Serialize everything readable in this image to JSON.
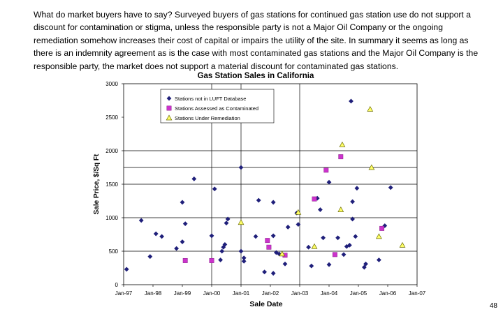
{
  "slide": {
    "paragraph": "What do market buyers have to say?  Surveyed buyers of gas stations for continued gas station use do not support a discount for contamination or stigma, unless the responsible party is not a Major Oil Company or the ongoing remediation somehow increases their cost of capital or impairs the utility of the site.  In summary it seems as long as there is an indemnity agreement as is the case with most contaminated gas stations and the Major Oil Company is the responsible party, the market does not support a material discount for contaminated gas stations.",
    "page_number": "48"
  },
  "chart_data": {
    "type": "scatter",
    "title": "Gas Station Sales in California",
    "xlabel": "Sale Date",
    "ylabel": "Sale Price, $/Sq Ft",
    "x_ticks": [
      "Jan-97",
      "Jan-98",
      "Jan-99",
      "Jan-00",
      "Jan-01",
      "Jan-02",
      "Jan-03",
      "Jan-04",
      "Jan-05",
      "Jan-06",
      "Jan-07"
    ],
    "xlim": [
      1997.0,
      2007.0
    ],
    "ylim": [
      0,
      3000
    ],
    "y_ticks": [
      0,
      500,
      1000,
      1500,
      2000,
      2500,
      3000
    ],
    "y_gridlines": [
      500,
      1000,
      1500,
      1750,
      2000
    ],
    "x_gridlines": [
      2000.0,
      2001.0,
      2003.0
    ],
    "legend_position": "top-center",
    "colors": {
      "not_in_luft": "#1f1f7a",
      "contaminated": "#cc33cc",
      "remediation": "#ffff66"
    },
    "series": [
      {
        "name": "Stations not in LUFT Database",
        "marker": "diamond",
        "points": [
          [
            1997.1,
            230
          ],
          [
            1997.6,
            960
          ],
          [
            1997.9,
            420
          ],
          [
            1998.1,
            760
          ],
          [
            1998.3,
            720
          ],
          [
            1998.8,
            540
          ],
          [
            1999.0,
            640
          ],
          [
            1999.0,
            1230
          ],
          [
            1999.1,
            910
          ],
          [
            1999.4,
            1580
          ],
          [
            2000.0,
            730
          ],
          [
            2000.1,
            1430
          ],
          [
            2000.3,
            370
          ],
          [
            2000.35,
            500
          ],
          [
            2000.4,
            560
          ],
          [
            2000.45,
            600
          ],
          [
            2000.5,
            920
          ],
          [
            2000.55,
            980
          ],
          [
            2001.0,
            500
          ],
          [
            2001.0,
            1750
          ],
          [
            2001.1,
            400
          ],
          [
            2001.1,
            350
          ],
          [
            2001.5,
            720
          ],
          [
            2001.6,
            1260
          ],
          [
            2001.8,
            190
          ],
          [
            2002.1,
            170
          ],
          [
            2002.1,
            730
          ],
          [
            2002.1,
            1230
          ],
          [
            2002.2,
            480
          ],
          [
            2002.3,
            460
          ],
          [
            2002.5,
            310
          ],
          [
            2002.6,
            860
          ],
          [
            2002.9,
            1070
          ],
          [
            2002.95,
            900
          ],
          [
            2003.3,
            560
          ],
          [
            2003.4,
            280
          ],
          [
            2003.6,
            1290
          ],
          [
            2003.7,
            1120
          ],
          [
            2003.8,
            700
          ],
          [
            2004.0,
            1530
          ],
          [
            2004.0,
            300
          ],
          [
            2004.3,
            700
          ],
          [
            2004.5,
            450
          ],
          [
            2004.6,
            570
          ],
          [
            2004.7,
            590
          ],
          [
            2004.75,
            2740
          ],
          [
            2004.8,
            1240
          ],
          [
            2004.8,
            980
          ],
          [
            2004.9,
            720
          ],
          [
            2004.95,
            1440
          ],
          [
            2005.2,
            260
          ],
          [
            2005.25,
            310
          ],
          [
            2005.7,
            370
          ],
          [
            2005.9,
            880
          ],
          [
            2006.1,
            1450
          ]
        ]
      },
      {
        "name": "Stations Assessed as Contaminated",
        "marker": "square",
        "points": [
          [
            1999.1,
            360
          ],
          [
            2000.0,
            360
          ],
          [
            2001.9,
            660
          ],
          [
            2001.95,
            560
          ],
          [
            2002.5,
            440
          ],
          [
            2003.5,
            1280
          ],
          [
            2003.9,
            1710
          ],
          [
            2004.2,
            450
          ],
          [
            2004.4,
            1910
          ],
          [
            2005.8,
            840
          ]
        ]
      },
      {
        "name": "Stations Under Remediation",
        "marker": "triangle",
        "points": [
          [
            2001.0,
            930
          ],
          [
            2002.4,
            460
          ],
          [
            2002.95,
            1080
          ],
          [
            2003.5,
            570
          ],
          [
            2004.4,
            1120
          ],
          [
            2004.45,
            2090
          ],
          [
            2005.4,
            2620
          ],
          [
            2005.45,
            1750
          ],
          [
            2005.7,
            720
          ],
          [
            2006.5,
            590
          ]
        ]
      }
    ]
  }
}
